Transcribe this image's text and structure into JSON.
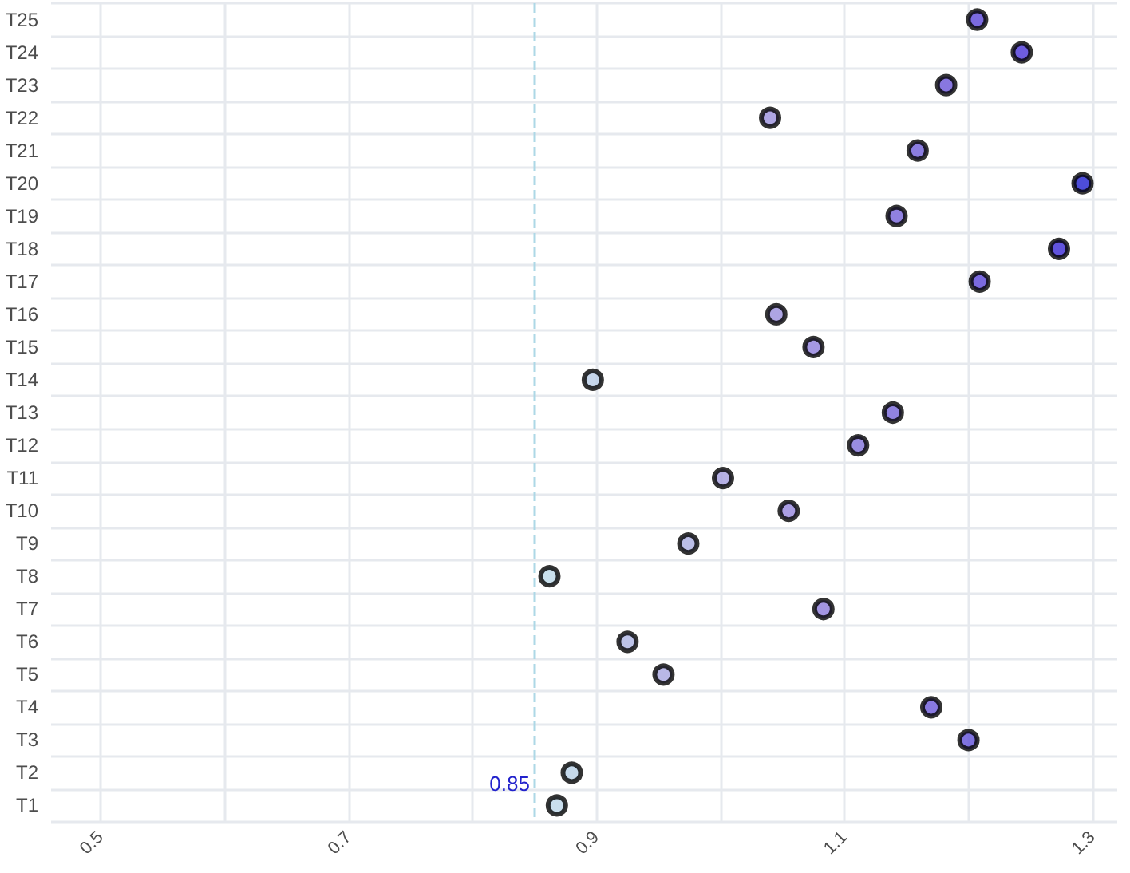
{
  "chart_data": {
    "type": "scatter",
    "orientation": "horizontal",
    "marker": "circle",
    "grid": true,
    "categories": [
      "T25",
      "T24",
      "T23",
      "T22",
      "T21",
      "T20",
      "T19",
      "T18",
      "T17",
      "T16",
      "T15",
      "T14",
      "T13",
      "T12",
      "T11",
      "T10",
      "T9",
      "T8",
      "T7",
      "T6",
      "T5",
      "T4",
      "T3",
      "T2",
      "T1"
    ],
    "values": [
      1.207,
      1.243,
      1.182,
      1.04,
      1.159,
      1.292,
      1.142,
      1.273,
      1.209,
      1.045,
      1.075,
      0.897,
      1.139,
      1.111,
      1.002,
      1.055,
      0.974,
      0.862,
      1.083,
      0.925,
      0.954,
      1.17,
      1.2,
      0.88,
      0.868
    ],
    "colors": [
      "#5a45d8",
      "#4a35d8",
      "#6a55d8",
      "#9a90dc",
      "#6e5cd8",
      "#2020d0",
      "#7462d8",
      "#3a28d4",
      "#5a45d8",
      "#9a8edc",
      "#8f7edc",
      "#b8cce6",
      "#7664d8",
      "#8070da",
      "#a49edf",
      "#9586dc",
      "#aaaee2",
      "#bcd8e8",
      "#8c7adb",
      "#acb4e3",
      "#a8a6e0",
      "#6a58d8",
      "#6050d8",
      "#b6cfe6",
      "#bbd6e8"
    ],
    "xlim": [
      0.46,
      1.32
    ],
    "xticks": [
      0.5,
      {
        "value": 0.6,
        "label": null
      },
      0.7,
      {
        "value": 0.8,
        "label": null
      },
      0.9,
      {
        "value": 1.0,
        "label": null
      },
      1.1,
      {
        "value": 1.2,
        "label": null
      },
      1.3
    ],
    "ref_lines": [
      {
        "axis": "x",
        "value": 0.85,
        "label": "0.85",
        "color": "#add8e6",
        "line_style": "dashed"
      }
    ]
  }
}
